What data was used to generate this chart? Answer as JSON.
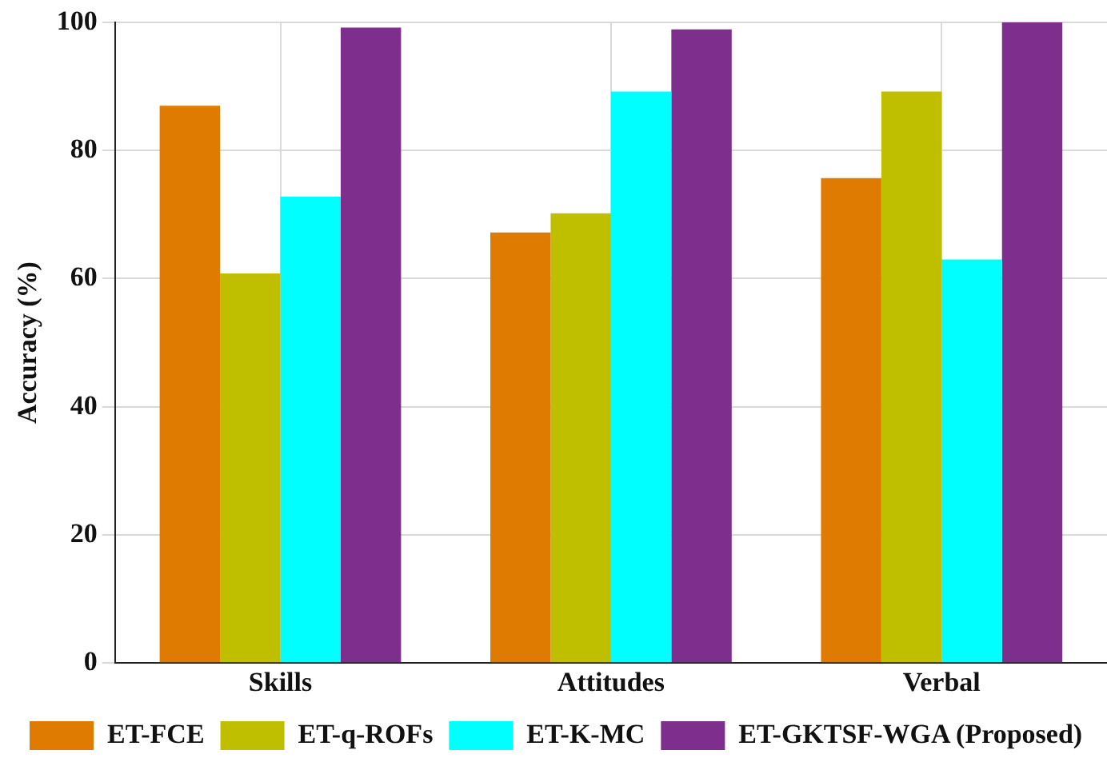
{
  "chart_data": {
    "type": "bar",
    "ylabel": "Accuracy (%)",
    "categories": [
      "Skills",
      "Attitudes",
      "Verbal"
    ],
    "series": [
      {
        "name": "ET-FCE",
        "color": "#df7b00",
        "values": [
          87.0,
          67.2,
          75.7
        ]
      },
      {
        "name": "ET-q-ROFs",
        "color": "#bfbf00",
        "values": [
          60.8,
          70.2,
          89.2
        ]
      },
      {
        "name": "ET-K-MC",
        "color": "#00ffff",
        "values": [
          72.8,
          89.2,
          63.0
        ]
      },
      {
        "name": "ET-GKTSF-WGA (Proposed)",
        "color": "#7e2f8e",
        "values": [
          99.2,
          98.9,
          100
        ]
      }
    ],
    "ylim": [
      0,
      100
    ],
    "yticks": [
      0,
      20,
      40,
      60,
      80,
      100
    ],
    "grid": true,
    "legend": "bottom"
  }
}
